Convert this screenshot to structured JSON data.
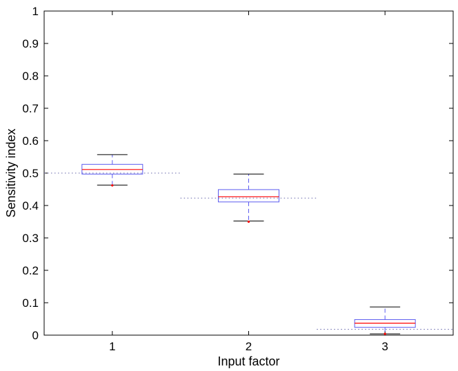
{
  "chart_data": {
    "type": "box",
    "title": "",
    "xlabel": "Input factor",
    "ylabel": "Sensitivity index",
    "ylim": [
      0,
      1
    ],
    "yticks": [
      "0",
      "0.1",
      "0.2",
      "0.3",
      "0.4",
      "0.5",
      "0.6",
      "0.7",
      "0.8",
      "0.9",
      "1"
    ],
    "xlim": [
      0.5,
      3.5
    ],
    "categories": [
      "1",
      "2",
      "3"
    ],
    "boxes": [
      {
        "x": 1,
        "whisker_low": 0.463,
        "q1": 0.497,
        "median": 0.511,
        "q3": 0.527,
        "whisker_high": 0.557,
        "outliers": [
          0.462
        ],
        "reference": 0.5,
        "reference_range": [
          0.5,
          1.5
        ]
      },
      {
        "x": 2,
        "whisker_low": 0.352,
        "q1": 0.411,
        "median": 0.427,
        "q3": 0.449,
        "whisker_high": 0.497,
        "outliers": [
          0.35
        ],
        "reference": 0.423,
        "reference_range": [
          1.5,
          2.5
        ]
      },
      {
        "x": 3,
        "whisker_low": 0.004,
        "q1": 0.024,
        "median": 0.037,
        "q3": 0.048,
        "whisker_high": 0.087,
        "outliers": [
          0.004
        ],
        "reference": 0.018,
        "reference_range": [
          2.5,
          3.5
        ]
      }
    ],
    "grid": false,
    "colors": {
      "box": "#5a5af0",
      "median": "#ff0000",
      "whisker_cap": "#000000",
      "outlier": "#ff0000",
      "reference": "#6666aa",
      "axes": "#000000"
    }
  }
}
